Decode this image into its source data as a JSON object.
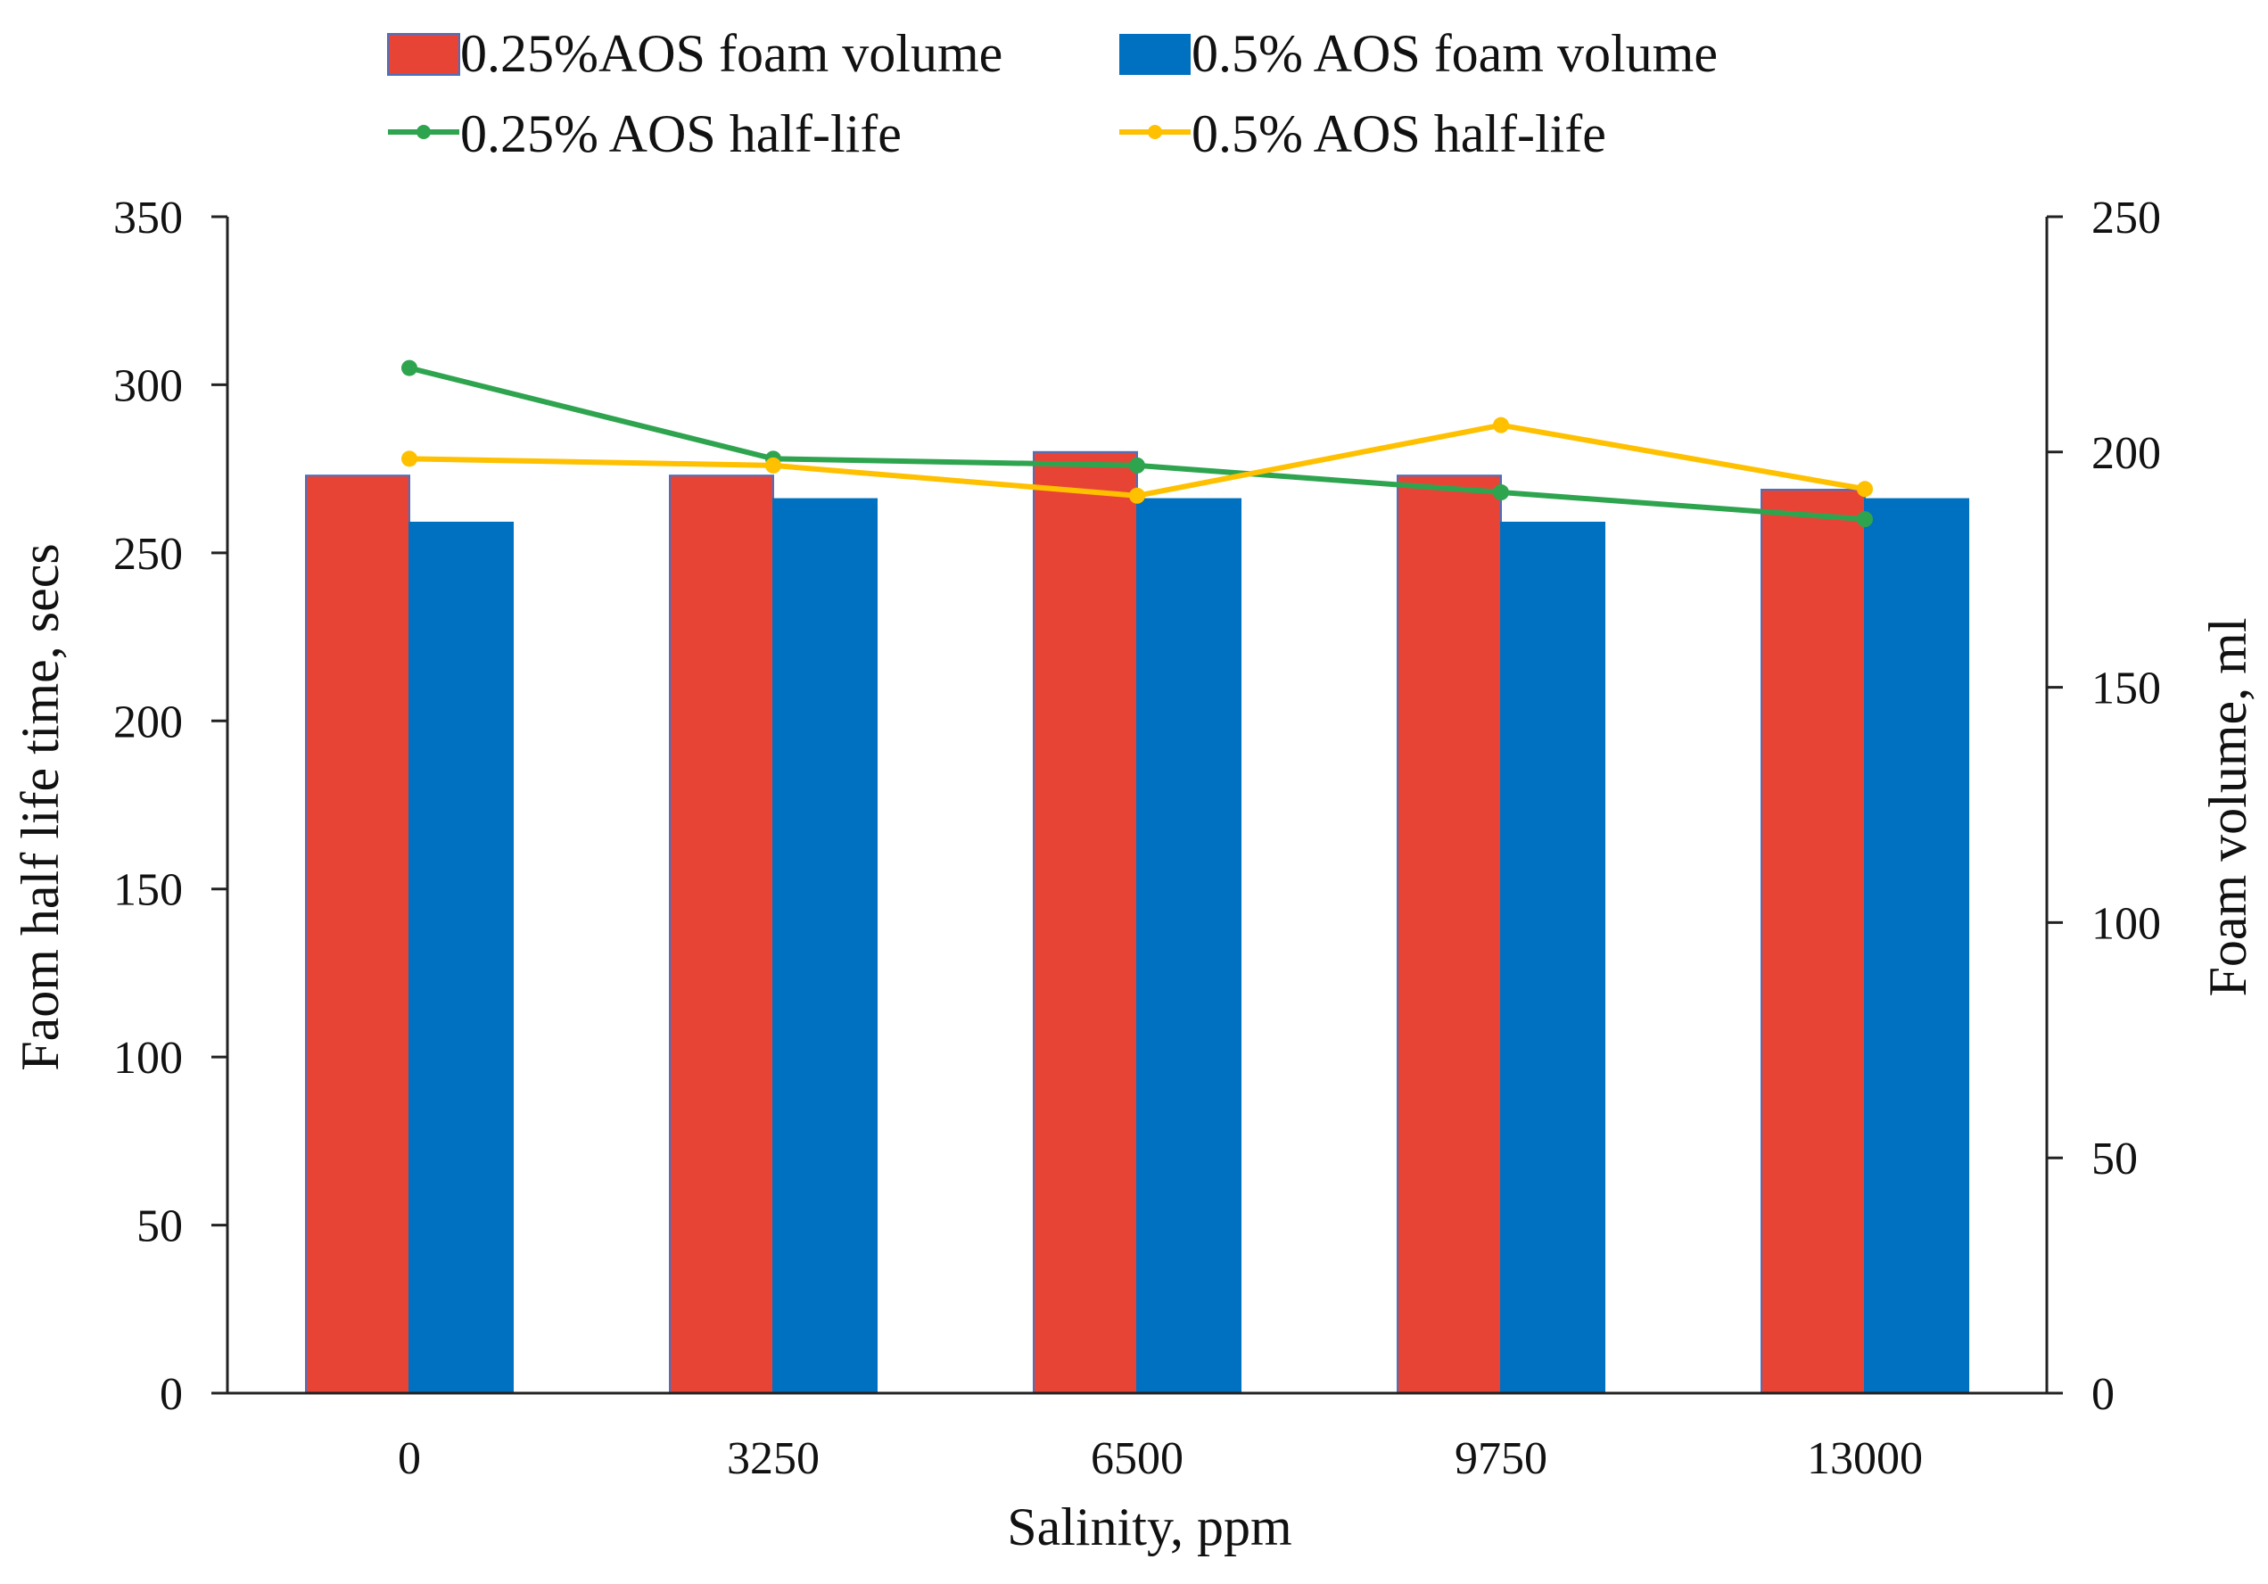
{
  "chart_data": {
    "type": "bar",
    "title": "",
    "xlabel": "Salinity, ppm",
    "ylabel_left": "Faom half life time, secs",
    "ylabel_right": "Foam volume, ml",
    "categories": [
      "0",
      "3250",
      "6500",
      "9750",
      "13000"
    ],
    "ylim_left": [
      0,
      350
    ],
    "yticks_left": [
      0,
      50,
      100,
      150,
      200,
      250,
      300,
      350
    ],
    "ylim_right": [
      0,
      250
    ],
    "yticks_right": [
      0,
      50,
      100,
      150,
      200,
      250
    ],
    "grid": false,
    "legend_position": "top",
    "series": [
      {
        "name": "0.25%AOS foam volume",
        "kind": "bar",
        "axis": "right",
        "color": "#E84436",
        "edge": "#4472C4",
        "values": [
          195,
          195,
          200,
          195,
          192
        ]
      },
      {
        "name": "0.5% AOS foam volume",
        "kind": "bar",
        "axis": "right",
        "color": "#0070C0",
        "edge": "#0070C0",
        "values": [
          185,
          190,
          190,
          185,
          190
        ]
      },
      {
        "name": "0.25% AOS half-life",
        "kind": "line",
        "axis": "left",
        "color": "#2EA44F",
        "values": [
          305,
          278,
          276,
          268,
          260
        ]
      },
      {
        "name": "0.5% AOS half-life",
        "kind": "line",
        "axis": "left",
        "color": "#FFC000",
        "values": [
          278,
          276,
          267,
          288,
          269
        ]
      }
    ]
  }
}
